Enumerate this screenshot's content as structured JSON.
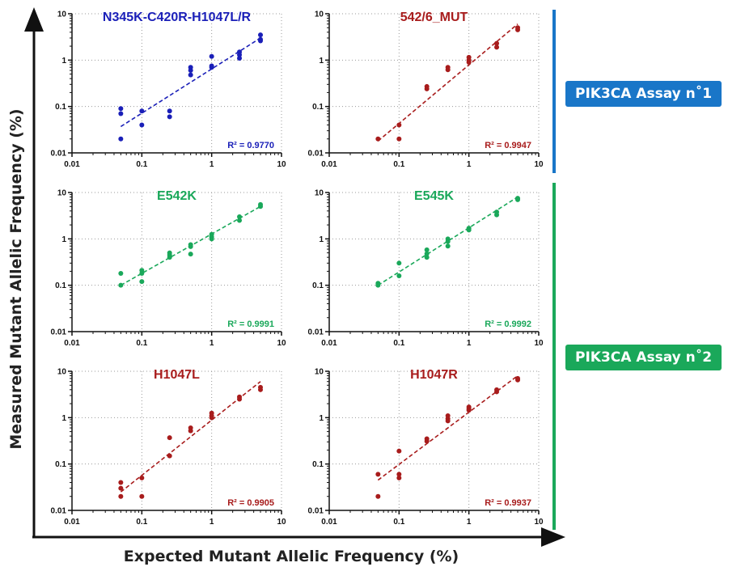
{
  "figure": {
    "xlabel": "Expected Mutant Allelic Frequency (%)",
    "ylabel": "Measured Mutant Allelic Frequency (%)"
  },
  "assays": [
    {
      "label": "PIK3CA Assay n˚1",
      "color": "#1976c8"
    },
    {
      "label": "PIK3CA Assay n˚2",
      "color": "#1aa85a"
    }
  ],
  "chart_data": [
    {
      "type": "scatter",
      "title": "N345K-C420R-H1047L/R",
      "color": "#1a1fb8",
      "r2": "R² = 0.9770",
      "xscale": "log",
      "yscale": "log",
      "xlim": [
        0.01,
        10
      ],
      "ylim": [
        0.01,
        10
      ],
      "xticks": [
        "0.01",
        "0.1",
        "1",
        "10"
      ],
      "yticks": [
        "0.01",
        "0.1",
        "1",
        "10"
      ],
      "points": [
        [
          0.05,
          0.09
        ],
        [
          0.05,
          0.07
        ],
        [
          0.05,
          0.02
        ],
        [
          0.1,
          0.08
        ],
        [
          0.1,
          0.04
        ],
        [
          0.25,
          0.08
        ],
        [
          0.25,
          0.06
        ],
        [
          0.5,
          0.7
        ],
        [
          0.5,
          0.6
        ],
        [
          0.5,
          0.48
        ],
        [
          1,
          1.2
        ],
        [
          1,
          0.75
        ],
        [
          1,
          0.7
        ],
        [
          2.5,
          1.5
        ],
        [
          2.5,
          1.3
        ],
        [
          2.5,
          1.1
        ],
        [
          5,
          3.5
        ],
        [
          5,
          2.8
        ],
        [
          5,
          2.6
        ]
      ],
      "fit": [
        [
          0.05,
          0.037
        ],
        [
          5,
          3.0
        ]
      ]
    },
    {
      "type": "scatter",
      "title": "542/6_MUT",
      "color": "#a81c1c",
      "r2": "R² = 0.9947",
      "xscale": "log",
      "yscale": "log",
      "xlim": [
        0.01,
        10
      ],
      "ylim": [
        0.01,
        10
      ],
      "xticks": [
        "0.01",
        "0.1",
        "1",
        "10"
      ],
      "yticks": [
        "0.01",
        "0.1",
        "1",
        "10"
      ],
      "points": [
        [
          0.05,
          0.02
        ],
        [
          0.1,
          0.04
        ],
        [
          0.1,
          0.02
        ],
        [
          0.25,
          0.27
        ],
        [
          0.25,
          0.24
        ],
        [
          0.5,
          0.7
        ],
        [
          0.5,
          0.62
        ],
        [
          1,
          1.15
        ],
        [
          1,
          1.0
        ],
        [
          1,
          0.9
        ],
        [
          2.5,
          2.3
        ],
        [
          2.5,
          1.9
        ],
        [
          5,
          5.0
        ],
        [
          5,
          4.5
        ]
      ],
      "fit": [
        [
          0.05,
          0.018
        ],
        [
          5,
          6.0
        ]
      ]
    },
    {
      "type": "scatter",
      "title": "E542K",
      "color": "#1aa85a",
      "r2": "R² = 0.9991",
      "xscale": "log",
      "yscale": "log",
      "xlim": [
        0.01,
        10
      ],
      "ylim": [
        0.01,
        10
      ],
      "xticks": [
        "0.01",
        "0.1",
        "1",
        "10"
      ],
      "yticks": [
        "0.01",
        "0.1",
        "1",
        "10"
      ],
      "points": [
        [
          0.05,
          0.18
        ],
        [
          0.05,
          0.1
        ],
        [
          0.1,
          0.21
        ],
        [
          0.1,
          0.18
        ],
        [
          0.1,
          0.12
        ],
        [
          0.25,
          0.5
        ],
        [
          0.25,
          0.45
        ],
        [
          0.25,
          0.4
        ],
        [
          0.5,
          0.75
        ],
        [
          0.5,
          0.68
        ],
        [
          0.5,
          0.47
        ],
        [
          1,
          1.25
        ],
        [
          1,
          1.1
        ],
        [
          1,
          1.0
        ],
        [
          2.5,
          3.0
        ],
        [
          2.5,
          2.5
        ],
        [
          5,
          5.5
        ],
        [
          5,
          5.0
        ]
      ],
      "fit": [
        [
          0.05,
          0.1
        ],
        [
          5,
          5.0
        ]
      ]
    },
    {
      "type": "scatter",
      "title": "E545K",
      "color": "#1aa85a",
      "r2": "R² = 0.9992",
      "xscale": "log",
      "yscale": "log",
      "xlim": [
        0.01,
        10
      ],
      "ylim": [
        0.01,
        10
      ],
      "xticks": [
        "0.01",
        "0.1",
        "1",
        "10"
      ],
      "yticks": [
        "0.01",
        "0.1",
        "1",
        "10"
      ],
      "points": [
        [
          0.05,
          0.11
        ],
        [
          0.05,
          0.1
        ],
        [
          0.1,
          0.3
        ],
        [
          0.1,
          0.16
        ],
        [
          0.25,
          0.58
        ],
        [
          0.25,
          0.48
        ],
        [
          0.25,
          0.4
        ],
        [
          0.5,
          1.0
        ],
        [
          0.5,
          0.88
        ],
        [
          0.5,
          0.7
        ],
        [
          1,
          1.7
        ],
        [
          1,
          1.55
        ],
        [
          2.5,
          3.8
        ],
        [
          2.5,
          3.3
        ],
        [
          5,
          7.5
        ],
        [
          5,
          7.0
        ]
      ],
      "fit": [
        [
          0.05,
          0.1
        ],
        [
          5,
          8.0
        ]
      ]
    },
    {
      "type": "scatter",
      "title": "H1047L",
      "color": "#a81c1c",
      "r2": "R² = 0.9905",
      "xscale": "log",
      "yscale": "log",
      "xlim": [
        0.01,
        10
      ],
      "ylim": [
        0.01,
        10
      ],
      "xticks": [
        "0.01",
        "0.1",
        "1",
        "10"
      ],
      "yticks": [
        "0.01",
        "0.1",
        "1",
        "10"
      ],
      "points": [
        [
          0.05,
          0.04
        ],
        [
          0.05,
          0.03
        ],
        [
          0.05,
          0.02
        ],
        [
          0.1,
          0.05
        ],
        [
          0.1,
          0.02
        ],
        [
          0.25,
          0.37
        ],
        [
          0.25,
          0.15
        ],
        [
          0.5,
          0.6
        ],
        [
          0.5,
          0.52
        ],
        [
          1,
          1.25
        ],
        [
          1,
          1.1
        ],
        [
          1,
          1.0
        ],
        [
          2.5,
          2.8
        ],
        [
          2.5,
          2.5
        ],
        [
          5,
          4.5
        ],
        [
          5,
          4.0
        ]
      ],
      "fit": [
        [
          0.05,
          0.025
        ],
        [
          5,
          6.0
        ]
      ]
    },
    {
      "type": "scatter",
      "title": "H1047R",
      "color": "#a81c1c",
      "r2": "R² = 0.9937",
      "xscale": "log",
      "yscale": "log",
      "xlim": [
        0.01,
        10
      ],
      "ylim": [
        0.01,
        10
      ],
      "xticks": [
        "0.01",
        "0.1",
        "1",
        "10"
      ],
      "yticks": [
        "0.01",
        "0.1",
        "1",
        "10"
      ],
      "points": [
        [
          0.05,
          0.06
        ],
        [
          0.05,
          0.02
        ],
        [
          0.1,
          0.19
        ],
        [
          0.1,
          0.06
        ],
        [
          0.1,
          0.05
        ],
        [
          0.25,
          0.35
        ],
        [
          0.25,
          0.31
        ],
        [
          0.5,
          1.1
        ],
        [
          0.5,
          0.95
        ],
        [
          0.5,
          0.85
        ],
        [
          1,
          1.7
        ],
        [
          1,
          1.55
        ],
        [
          1,
          1.45
        ],
        [
          2.5,
          4.0
        ],
        [
          2.5,
          3.6
        ],
        [
          5,
          7.0
        ],
        [
          5,
          6.5
        ]
      ],
      "fit": [
        [
          0.05,
          0.045
        ],
        [
          5,
          8.0
        ]
      ]
    }
  ]
}
